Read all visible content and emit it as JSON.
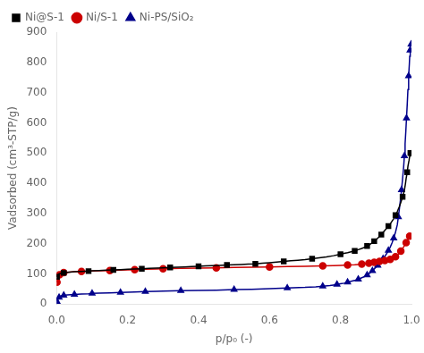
{
  "chart_data": {
    "type": "line",
    "xlabel": "p/p₀ (-)",
    "ylabel": "Vadsorbed (cm³-STP/g)",
    "xlim": [
      0.0,
      1.0
    ],
    "ylim": [
      0,
      900
    ],
    "xticks": [
      {
        "value": 0.0,
        "label": "0.0"
      },
      0.2,
      0.4,
      0.6,
      0.8,
      {
        "value": 1.0,
        "label": "1.0"
      }
    ],
    "yticks": [
      0,
      100,
      200,
      300,
      400,
      500,
      600,
      700,
      800,
      900
    ],
    "grid": false,
    "legend": "upper left",
    "series": [
      {
        "name": "Ni@S-1",
        "color": "#000000",
        "marker": "square",
        "x": [
          0.001,
          0.003,
          0.006,
          0.01,
          0.02,
          0.03,
          0.05,
          0.07,
          0.09,
          0.1,
          0.12,
          0.14,
          0.16,
          0.18,
          0.2,
          0.22,
          0.24,
          0.26,
          0.28,
          0.3,
          0.32,
          0.34,
          0.36,
          0.38,
          0.4,
          0.42,
          0.44,
          0.46,
          0.48,
          0.5,
          0.52,
          0.54,
          0.56,
          0.58,
          0.6,
          0.62,
          0.64,
          0.66,
          0.68,
          0.7,
          0.72,
          0.74,
          0.76,
          0.78,
          0.8,
          0.81,
          0.82,
          0.83,
          0.84,
          0.85,
          0.86,
          0.87,
          0.875,
          0.88,
          0.885,
          0.89,
          0.895,
          0.9,
          0.905,
          0.91,
          0.915,
          0.92,
          0.925,
          0.93,
          0.935,
          0.94,
          0.945,
          0.95,
          0.955,
          0.96,
          0.965,
          0.97,
          0.975,
          0.98,
          0.983,
          0.985,
          0.988,
          0.99,
          0.993,
          0.995,
          0.997,
          0.999
        ],
        "values": [
          90,
          95,
          99,
          101,
          103,
          105,
          107,
          108,
          109,
          110,
          111,
          112,
          113,
          114,
          115,
          116,
          117,
          118,
          119,
          120,
          121,
          122,
          123,
          124,
          125,
          126,
          127,
          128,
          129,
          130,
          131,
          132,
          133,
          135,
          137,
          139,
          141,
          143,
          145,
          147,
          150,
          153,
          156,
          160,
          165,
          168,
          170,
          173,
          176,
          180,
          184,
          189,
          192,
          195,
          199,
          203,
          208,
          213,
          218,
          224,
          230,
          237,
          244,
          251,
          258,
          265,
          274,
          283,
          294,
          306,
          320,
          336,
          355,
          376,
          398,
          416,
          436,
          456,
          475,
          490,
          500,
          510
        ]
      },
      {
        "name": "Ni/S-1",
        "color": "#cc0000",
        "marker": "circle",
        "x": [
          0.001,
          0.003,
          0.005,
          0.008,
          0.01,
          0.015,
          0.02,
          0.03,
          0.05,
          0.07,
          0.1,
          0.12,
          0.15,
          0.18,
          0.2,
          0.22,
          0.25,
          0.28,
          0.3,
          0.35,
          0.4,
          0.45,
          0.5,
          0.55,
          0.6,
          0.65,
          0.7,
          0.75,
          0.78,
          0.8,
          0.82,
          0.84,
          0.85,
          0.86,
          0.87,
          0.875,
          0.88,
          0.885,
          0.89,
          0.895,
          0.9,
          0.905,
          0.91,
          0.915,
          0.92,
          0.925,
          0.93,
          0.935,
          0.94,
          0.945,
          0.95,
          0.955,
          0.96,
          0.965,
          0.97,
          0.975,
          0.98,
          0.985,
          0.99,
          0.993,
          0.995,
          0.997,
          0.999
        ],
        "values": [
          72,
          82,
          90,
          97,
          100,
          103,
          104,
          105,
          107,
          108,
          109,
          110,
          111,
          112,
          113,
          114,
          115,
          116,
          117,
          118,
          119,
          120,
          121,
          122,
          123,
          124,
          125,
          126,
          127,
          128,
          129,
          130,
          131,
          132,
          133,
          134,
          135,
          136,
          137,
          138,
          139,
          140,
          141,
          142,
          143,
          144,
          145,
          146,
          148,
          150,
          153,
          157,
          162,
          168,
          175,
          183,
          193,
          203,
          215,
          220,
          225,
          228,
          230
        ]
      },
      {
        "name": "Ni-PS/SiO₂",
        "color": "#00008b",
        "marker": "triangle",
        "x": [
          0.001,
          0.003,
          0.005,
          0.007,
          0.01,
          0.015,
          0.02,
          0.03,
          0.04,
          0.05,
          0.07,
          0.09,
          0.1,
          0.12,
          0.15,
          0.18,
          0.2,
          0.22,
          0.25,
          0.28,
          0.3,
          0.35,
          0.4,
          0.45,
          0.5,
          0.55,
          0.6,
          0.65,
          0.7,
          0.73,
          0.75,
          0.77,
          0.78,
          0.79,
          0.8,
          0.81,
          0.82,
          0.83,
          0.84,
          0.85,
          0.86,
          0.87,
          0.875,
          0.88,
          0.885,
          0.89,
          0.895,
          0.9,
          0.905,
          0.91,
          0.915,
          0.92,
          0.925,
          0.93,
          0.935,
          0.94,
          0.945,
          0.95,
          0.955,
          0.96,
          0.963,
          0.966,
          0.969,
          0.972,
          0.975,
          0.978,
          0.98,
          0.982,
          0.984,
          0.986,
          0.988,
          0.99,
          0.992,
          0.994,
          0.995,
          0.996,
          0.997,
          0.998,
          0.999
        ],
        "values": [
          8,
          14,
          18,
          22,
          25,
          28,
          29,
          30,
          31,
          32,
          33,
          34,
          35,
          36,
          37,
          38,
          39,
          40,
          41,
          42,
          43,
          44,
          45,
          46,
          48,
          49,
          51,
          53,
          55,
          57,
          59,
          61,
          63,
          65,
          67,
          69,
          72,
          75,
          78,
          82,
          87,
          92,
          96,
          100,
          105,
          110,
          116,
          122,
          128,
          135,
          142,
          150,
          158,
          167,
          177,
          188,
          202,
          218,
          238,
          262,
          288,
          316,
          346,
          378,
          415,
          455,
          490,
          530,
          570,
          615,
          660,
          710,
          755,
          795,
          820,
          840,
          855,
          862,
          860
        ]
      }
    ]
  }
}
